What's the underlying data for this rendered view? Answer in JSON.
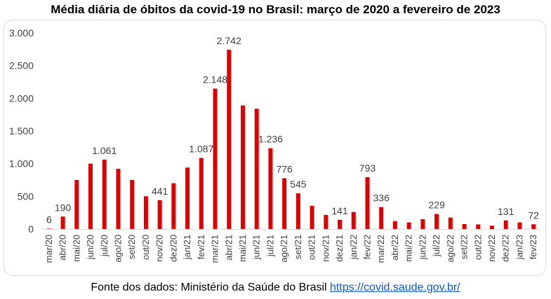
{
  "title": "Média diária de óbitos da covid-19 no Brasil: março de 2020 a fevereiro de 2023",
  "source": {
    "text": "Fonte dos dados: Ministério da Saúde do Brasil",
    "link": "https://covid.saude.gov.br/"
  },
  "chart_data": {
    "type": "bar",
    "title": "Média diária de óbitos da covid-19 no Brasil: março de 2020 a fevereiro de 2023",
    "xlabel": "",
    "ylabel": "",
    "ylim": [
      0,
      3000
    ],
    "yticks": [
      0,
      500,
      1000,
      1500,
      2000,
      2500,
      3000
    ],
    "ytick_labels": [
      "0",
      "500",
      "1.000",
      "1.500",
      "2.000",
      "2.500",
      "3.000"
    ],
    "grid": false,
    "bar_color": "#e00000",
    "categories": [
      "mar/20",
      "abr/20",
      "mai/20",
      "jun/20",
      "jul/20",
      "ago/20",
      "set/20",
      "out/20",
      "nov/20",
      "dez/20",
      "jan/21",
      "fev/21",
      "mar/21",
      "abr/21",
      "mai/21",
      "jun/21",
      "jul/21",
      "ago/21",
      "set/21",
      "out/21",
      "nov/21",
      "dez/21",
      "jan/22",
      "fev/22",
      "mar/22",
      "abr/22",
      "mai/22",
      "jun/22",
      "jul/22",
      "ago/22",
      "set/22",
      "out/22",
      "nov/22",
      "dez/22",
      "jan/23",
      "fev/23"
    ],
    "values": [
      6,
      190,
      750,
      1000,
      1061,
      920,
      750,
      500,
      441,
      700,
      940,
      1087,
      2148,
      2742,
      1890,
      1840,
      1236,
      776,
      545,
      355,
      215,
      141,
      260,
      793,
      336,
      120,
      100,
      150,
      229,
      175,
      75,
      70,
      50,
      131,
      100,
      72
    ],
    "labels": {
      "0": "6",
      "1": "190",
      "4": "1.061",
      "8": "441",
      "11": "1.087",
      "12": "2.148",
      "13": "2.742",
      "16": "1.236",
      "17": "776",
      "18": "545",
      "21": "141",
      "23": "793",
      "24": "336",
      "28": "229",
      "33": "131",
      "35": "72"
    }
  }
}
